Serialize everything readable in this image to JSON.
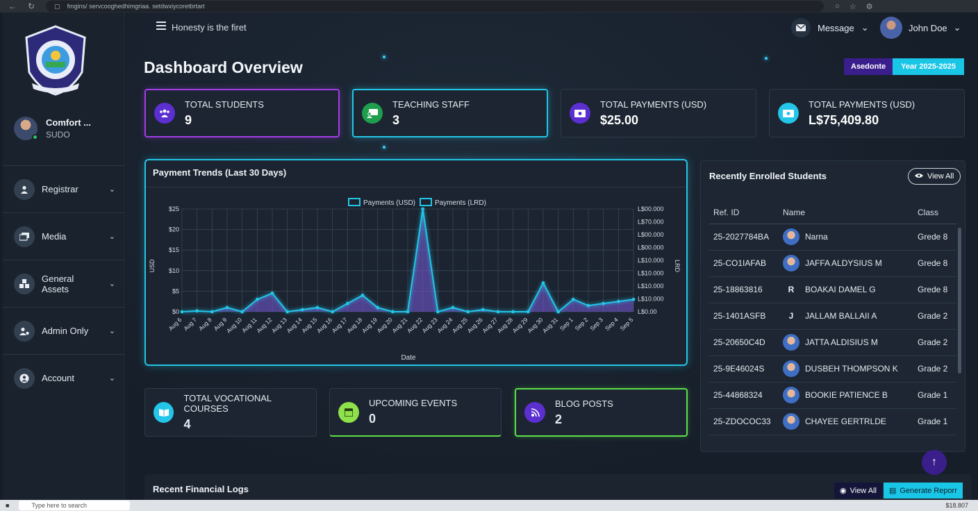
{
  "browser": {
    "url": "fmgins/ servcooghedhimgriaa. setdwxiycoretbrtart"
  },
  "sidebar": {
    "profile": {
      "name": "Comfort ...",
      "role": "SUDO"
    },
    "items": [
      {
        "label": "Registrar",
        "icon": "user-icon"
      },
      {
        "label": "Media",
        "icon": "media-icon"
      },
      {
        "label": "General Assets",
        "icon": "assets-icon"
      },
      {
        "label": "Admin Only",
        "icon": "admin-icon"
      },
      {
        "label": "Account",
        "icon": "account-icon"
      }
    ]
  },
  "topbar": {
    "motto": "Honesty is the firet",
    "message_label": "Message",
    "user_name": "John Doe"
  },
  "page": {
    "title": "Dashboard Overview",
    "badge_a": "Asedonte",
    "badge_b": "Year 2025-2025"
  },
  "stats": [
    {
      "label": "TOTAL STUDENTS",
      "value": "9",
      "color": "#a33ce8"
    },
    {
      "label": "TEACHING STAFF",
      "value": "3",
      "color": "#23c6e8"
    },
    {
      "label": "TOTAL PAYMENTS (USD)",
      "value": "$25.00",
      "color": "#5b2fd0"
    },
    {
      "label": "TOTAL PAYMENTS (USD)",
      "value": "L$75,409.80",
      "color": "#23c6e8"
    }
  ],
  "chart_data": {
    "type": "line",
    "title": "Payment Trends (Last 30 Days)",
    "xlabel": "Date",
    "ylabel": "USD",
    "y2label": "LRD",
    "legend": [
      "Payments (USD)",
      "Payments (LRD)"
    ],
    "categories": [
      "Aug 6",
      "Aug 7",
      "Aug 8",
      "Aug 9",
      "Aug 10",
      "Aug 11",
      "Aug 12",
      "Aug 13",
      "Aug 14",
      "Aug 15",
      "Aug 16",
      "Aug 17",
      "Aug 18",
      "Aug 19",
      "Aug 20",
      "Aug 21",
      "Aug 22",
      "Aug 23",
      "Aug 24",
      "Aug 25",
      "Aug 26",
      "Aug 27",
      "Aug 28",
      "Aug 29",
      "Aug 30",
      "Aug 31",
      "Sep 1",
      "Sep 2",
      "Sep 3",
      "Sep 4",
      "Sep 5"
    ],
    "y_ticks": [
      "$25",
      "$20",
      "$15",
      "$10",
      "$5",
      "$0"
    ],
    "y2_ticks": [
      "L$00.000",
      "L$70.000",
      "L$00.000",
      "L$00.000",
      "L$10.000",
      "L$10.000",
      "L$10.000",
      "L$10.000",
      "L$0.00"
    ],
    "ylim": [
      0,
      25
    ],
    "series": [
      {
        "name": "Payments (USD)",
        "values": [
          0,
          0.2,
          0,
          1,
          0,
          3,
          4.5,
          0,
          0.5,
          1,
          0,
          2,
          4,
          1,
          0,
          0,
          25,
          0,
          1,
          0,
          0.5,
          0,
          0,
          0,
          7,
          0,
          3,
          1.5,
          2,
          2.5,
          3
        ]
      }
    ]
  },
  "enrolled": {
    "title": "Recently Enrolled Students",
    "view_all": "View All",
    "headers": [
      "Ref. ID",
      "Name",
      "Class"
    ],
    "rows": [
      {
        "ref": "25-2027784BA",
        "name": "Narna",
        "class": "Grede 8",
        "avatar": true
      },
      {
        "ref": "25-CO1IAFAB",
        "name": "JAFFA ALDYSIUS M",
        "class": "Grede 8",
        "avatar": true
      },
      {
        "ref": "25-18863816",
        "name": "BOAKAI DAMEL G",
        "class": "Grede 8",
        "initial": "R"
      },
      {
        "ref": "25-1401ASFB",
        "name": "JALLAM BALLAII A",
        "class": "Grade 2",
        "initial": "J"
      },
      {
        "ref": "25-20650C4D",
        "name": "JATTA ALDISIUS M",
        "class": "Grade 2",
        "avatar": true
      },
      {
        "ref": "25-9E46024S",
        "name": "DUSBEH THOMPSON K",
        "class": "Grade 2",
        "avatar": true
      },
      {
        "ref": "25-44868324",
        "name": "BOOKIE PATIENCE B",
        "class": "Grade 1",
        "avatar": true
      },
      {
        "ref": "25-ZDOCOC33",
        "name": "CHAYEE GERTRLDE",
        "class": "Grade 1",
        "avatar": true
      }
    ]
  },
  "bottom_stats": [
    {
      "label": "TOTAL VOCATIONAL COURSES",
      "value": "4",
      "color": "#23c6e8"
    },
    {
      "label": "UPCOMING EVENTS",
      "value": "0",
      "color": "#5fe04a"
    },
    {
      "label": "BLOG POSTS",
      "value": "2",
      "color": "#5b2fd0"
    }
  ],
  "financial": {
    "title": "Recent Financial Logs",
    "view_all": "View All",
    "generate": "Generate Reporr"
  },
  "taskbar": {
    "search": "Type here to search",
    "time": "$18.807"
  }
}
